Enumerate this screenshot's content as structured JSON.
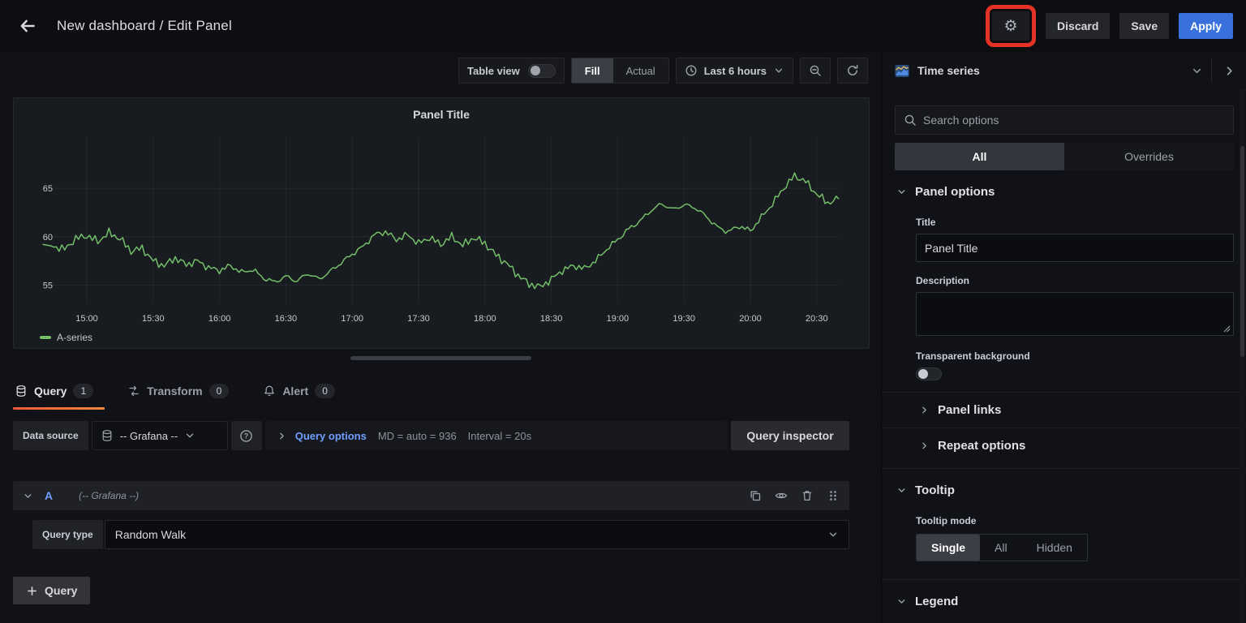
{
  "colors": {
    "accent_blue": "#3871dc",
    "link_blue": "#6e9fff",
    "series_green": "#73bf69",
    "annotation_red": "#e43326",
    "tab_underline": "#eb5c38"
  },
  "icons": {
    "gear": "⚙"
  },
  "topbar": {
    "title": "New dashboard / Edit Panel",
    "discard_label": "Discard",
    "save_label": "Save",
    "apply_label": "Apply"
  },
  "toolbar": {
    "table_view_label": "Table view",
    "fill_label": "Fill",
    "actual_label": "Actual",
    "time_range_label": "Last 6 hours"
  },
  "panel": {
    "title": "Panel Title",
    "legend_label": "A-series"
  },
  "chart_data": {
    "type": "line",
    "title": "Panel Title",
    "x": [
      "14:40",
      "14:45",
      "14:50",
      "14:55",
      "15:00",
      "15:05",
      "15:10",
      "15:15",
      "15:20",
      "15:25",
      "15:30",
      "15:35",
      "15:40",
      "15:45",
      "15:50",
      "15:55",
      "16:00",
      "16:05",
      "16:10",
      "16:15",
      "16:20",
      "16:25",
      "16:30",
      "16:35",
      "16:40",
      "16:45",
      "16:50",
      "16:55",
      "17:00",
      "17:05",
      "17:10",
      "17:15",
      "17:20",
      "17:25",
      "17:30",
      "17:35",
      "17:40",
      "17:45",
      "17:50",
      "17:55",
      "18:00",
      "18:05",
      "18:10",
      "18:15",
      "18:20",
      "18:25",
      "18:30",
      "18:35",
      "18:40",
      "18:45",
      "18:50",
      "18:55",
      "19:00",
      "19:05",
      "19:10",
      "19:15",
      "19:20",
      "19:25",
      "19:30",
      "19:35",
      "19:40",
      "19:45",
      "19:50",
      "19:55",
      "20:00",
      "20:05",
      "20:10",
      "20:15",
      "20:20",
      "20:25",
      "20:30",
      "20:35",
      "20:40"
    ],
    "series": [
      {
        "name": "A-series",
        "color": "#73bf69",
        "values": [
          59.2,
          59.0,
          58.7,
          59.8,
          60.1,
          59.5,
          60.4,
          59.8,
          58.5,
          58.8,
          57.5,
          57.0,
          57.8,
          57.1,
          57.5,
          56.8,
          56.5,
          57.0,
          56.3,
          56.6,
          55.7,
          55.3,
          55.9,
          55.4,
          56.2,
          55.6,
          56.4,
          57.3,
          58.2,
          59.0,
          60.2,
          60.5,
          59.7,
          60.2,
          59.3,
          59.9,
          59.2,
          60.0,
          59.1,
          59.9,
          59.3,
          58.1,
          57.2,
          56.0,
          55.1,
          54.8,
          55.6,
          56.5,
          57.0,
          56.7,
          57.5,
          58.7,
          59.7,
          60.8,
          61.6,
          62.7,
          63.4,
          62.8,
          63.3,
          63.0,
          62.1,
          61.0,
          60.5,
          61.1,
          60.6,
          62.0,
          63.4,
          65.0,
          66.3,
          65.7,
          64.4,
          63.5,
          63.9
        ]
      }
    ],
    "yticks": [
      55,
      60,
      65
    ],
    "ylim": [
      53.1,
      70.3
    ],
    "xticks": [
      "15:00",
      "15:30",
      "16:00",
      "16:30",
      "17:00",
      "17:30",
      "18:00",
      "18:30",
      "19:00",
      "19:30",
      "20:00",
      "20:30"
    ],
    "grid": true,
    "legend_position": "bottom-left"
  },
  "query_tabs": [
    {
      "label": "Query",
      "count": "1"
    },
    {
      "label": "Transform",
      "count": "0"
    },
    {
      "label": "Alert",
      "count": "0"
    }
  ],
  "datasource_row": {
    "label": "Data source",
    "value": "-- Grafana --",
    "query_options_label": "Query options",
    "max_data_points": "MD = auto = 936",
    "interval": "Interval = 20s",
    "inspector_label": "Query inspector"
  },
  "query_editor": {
    "ref_id": "A",
    "datasource_hint": "(-- Grafana --)",
    "query_type_label": "Query type",
    "query_type_value": "Random Walk"
  },
  "add_query": {
    "label": "Query"
  },
  "options_pane": {
    "visualization_label": "Time series",
    "search_placeholder": "Search options",
    "filter_tabs": [
      {
        "label": "All"
      },
      {
        "label": "Overrides"
      }
    ],
    "panel_options": {
      "heading": "Panel options",
      "title_label": "Title",
      "title_value": "Panel Title",
      "description_label": "Description",
      "description_value": "",
      "transparent_label": "Transparent background"
    },
    "panel_links_heading": "Panel links",
    "repeat_options_heading": "Repeat options",
    "tooltip": {
      "heading": "Tooltip",
      "mode_label": "Tooltip mode",
      "modes": [
        {
          "label": "Single"
        },
        {
          "label": "All"
        },
        {
          "label": "Hidden"
        }
      ]
    },
    "legend_heading": "Legend"
  }
}
